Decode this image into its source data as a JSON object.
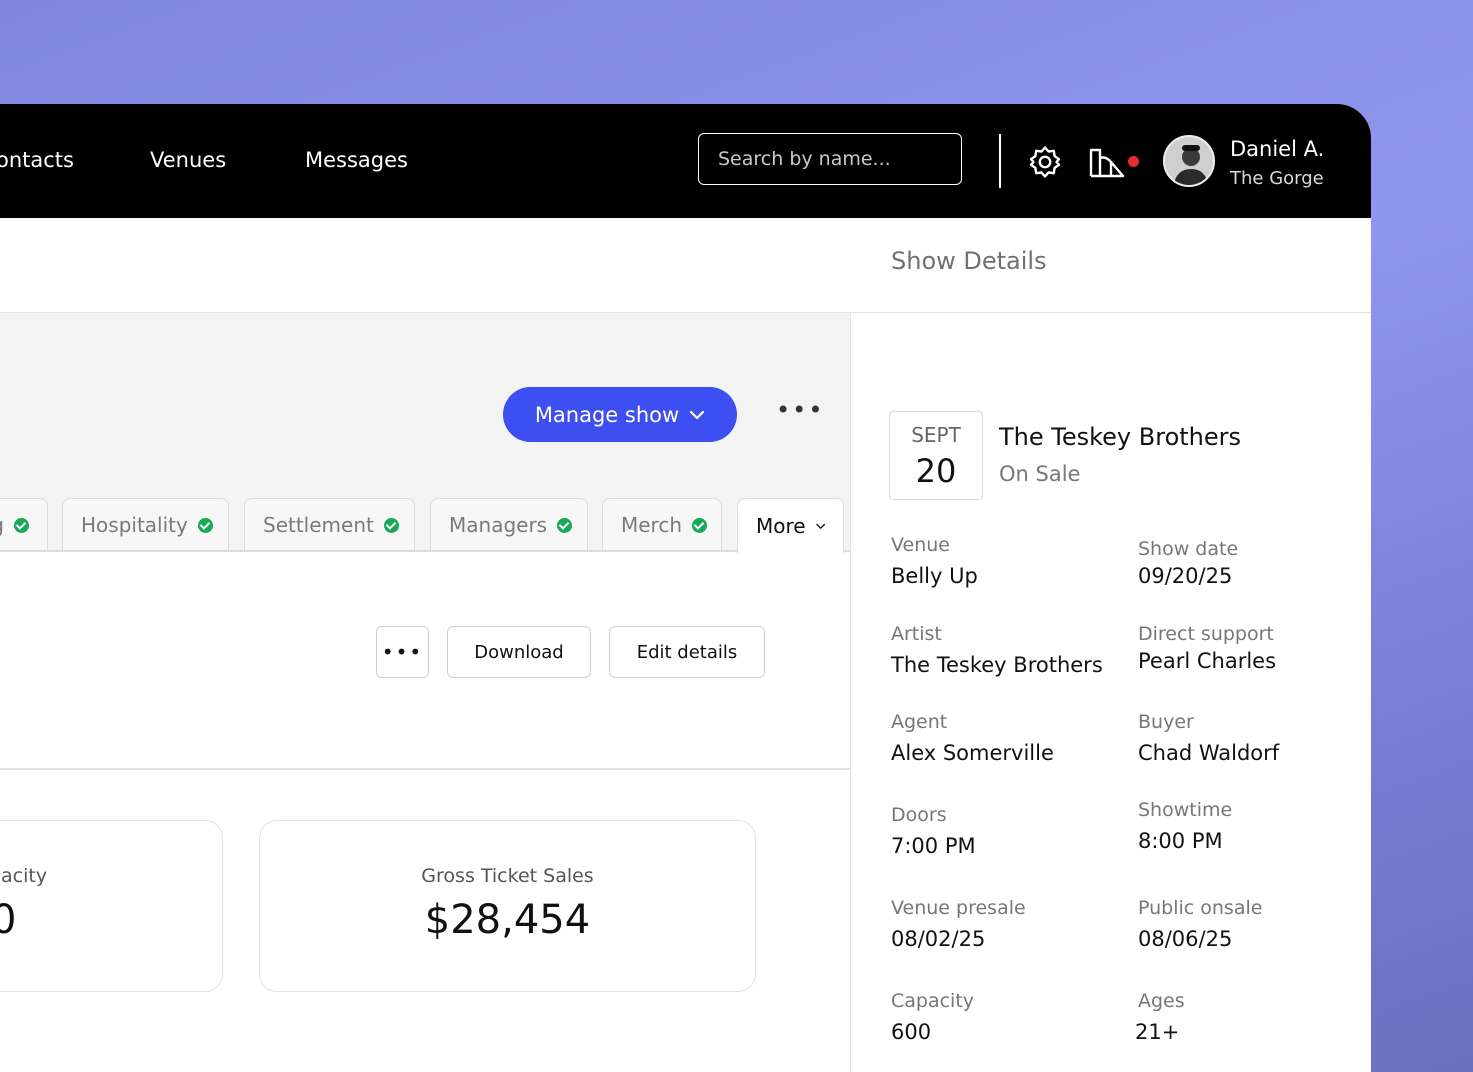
{
  "nav": {
    "items": [
      "ontacts",
      "Venues",
      "Messages"
    ],
    "search_placeholder": "Search by name..."
  },
  "user": {
    "name": "Daniel A.",
    "venue": "The Gorge"
  },
  "actions": {
    "manage_show": "Manage show",
    "more_menu": "•••"
  },
  "tabs": [
    {
      "label": "g",
      "complete": true
    },
    {
      "label": "Hospitality",
      "complete": true
    },
    {
      "label": "Settlement",
      "complete": true
    },
    {
      "label": "Managers",
      "complete": true
    },
    {
      "label": "Merch",
      "complete": true
    },
    {
      "label": "More",
      "active": true
    }
  ],
  "toolbar": {
    "more": "•••",
    "download": "Download",
    "edit": "Edit details"
  },
  "stats": [
    {
      "label": "acity",
      "value": "0"
    },
    {
      "label": "Gross Ticket Sales",
      "value": "$28,454"
    }
  ],
  "details": {
    "title": "Show Details",
    "date_month": "SEPT",
    "date_day": "20",
    "artist": "The Teskey Brothers",
    "status": "On Sale",
    "fields": [
      {
        "label": "Venue",
        "value": "Belly Up"
      },
      {
        "label": "Show date",
        "value": "09/20/25"
      },
      {
        "label": "Artist",
        "value": "The Teskey Brothers"
      },
      {
        "label": "Direct support",
        "value": "Pearl Charles"
      },
      {
        "label": "Agent",
        "value": "Alex Somerville"
      },
      {
        "label": "Buyer",
        "value": "Chad Waldorf"
      },
      {
        "label": "Doors",
        "value": "7:00 PM"
      },
      {
        "label": "Showtime",
        "value": "8:00 PM"
      },
      {
        "label": "Venue presale",
        "value": "08/02/25"
      },
      {
        "label": "Public onsale",
        "value": "08/06/25"
      },
      {
        "label": "Capacity",
        "value": "600"
      },
      {
        "label": "Ages",
        "value": "21+"
      }
    ]
  },
  "colors": {
    "accent": "#3d4ff0",
    "check": "#18a957",
    "notification": "#e5302c",
    "background": "#8f96ee"
  },
  "icons": [
    "settings-gear-icon",
    "venue-building-icon",
    "chevron-down-icon",
    "check-circle-icon"
  ]
}
